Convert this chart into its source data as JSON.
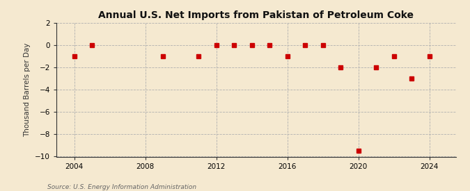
{
  "title": "Annual U.S. Net Imports from Pakistan of Petroleum Coke",
  "ylabel": "Thousand Barrels per Day",
  "source": "Source: U.S. Energy Information Administration",
  "years": [
    2004,
    2005,
    2006,
    2007,
    2008,
    2009,
    2010,
    2011,
    2012,
    2013,
    2014,
    2015,
    2016,
    2017,
    2018,
    2019,
    2020,
    2021,
    2022,
    2023,
    2024
  ],
  "values": [
    -1.0,
    0.0,
    null,
    null,
    null,
    -1.0,
    null,
    -1.0,
    0.0,
    0.0,
    0.0,
    0.0,
    -1.0,
    0.0,
    0.0,
    -2.0,
    -9.5,
    -2.0,
    -1.0,
    -3.0,
    -1.0
  ],
  "ylim": [
    -10,
    2
  ],
  "yticks": [
    -10,
    -8,
    -6,
    -4,
    -2,
    0,
    2
  ],
  "xlim": [
    2003.0,
    2025.5
  ],
  "xticks": [
    2004,
    2008,
    2012,
    2016,
    2020,
    2024
  ],
  "background_color": "#f5e9d0",
  "marker_color": "#cc0000",
  "marker_size": 4,
  "title_fontsize": 10,
  "label_fontsize": 7.5,
  "tick_fontsize": 7.5,
  "source_fontsize": 6.5
}
